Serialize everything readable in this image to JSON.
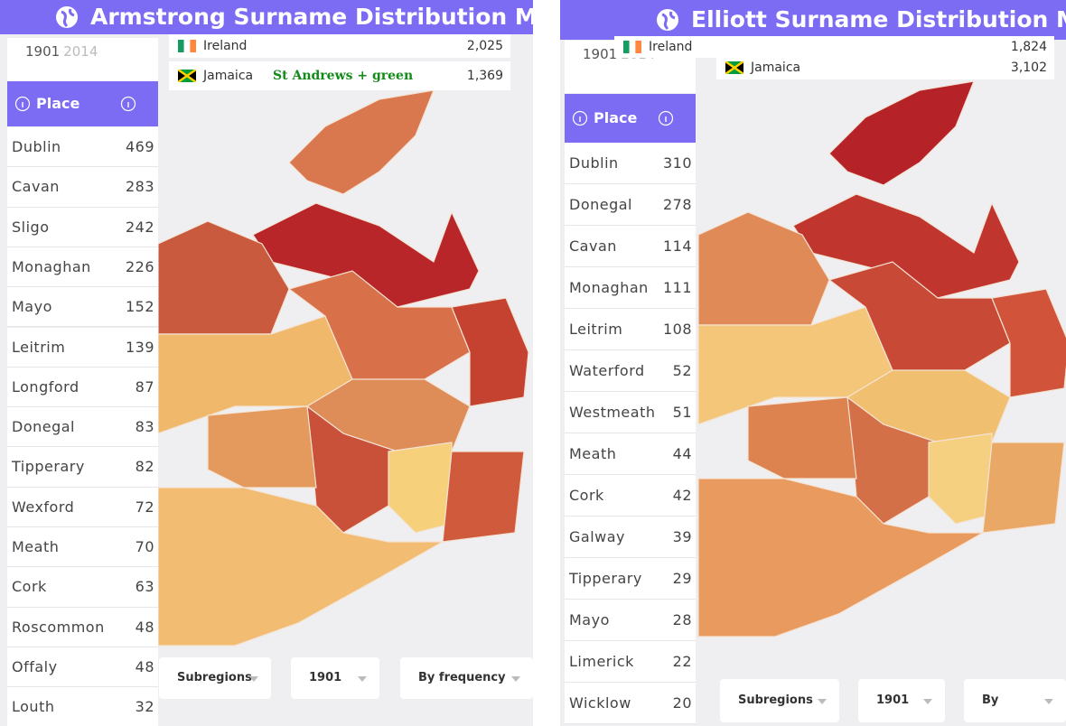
{
  "panels": [
    {
      "title": "Armstrong Surname Distribution Map",
      "years": [
        "1901",
        "2014"
      ],
      "countries": [
        {
          "name": "Ireland",
          "count": "2,025"
        },
        {
          "name": "Jamaica",
          "count": "1,369",
          "note": "St Andrews + green"
        }
      ],
      "table": {
        "header": "Place",
        "rows": [
          [
            "Dublin",
            469
          ],
          [
            "Cavan",
            283
          ],
          [
            "Sligo",
            242
          ],
          [
            "Monaghan",
            226
          ],
          [
            "Mayo",
            152
          ],
          [
            "Leitrim",
            139
          ],
          [
            "Longford",
            87
          ],
          [
            "Donegal",
            83
          ],
          [
            "Tipperary",
            82
          ],
          [
            "Wexford",
            72
          ],
          [
            "Meath",
            70
          ],
          [
            "Cork",
            63
          ],
          [
            "Roscommon",
            48
          ],
          [
            "Offaly",
            48
          ],
          [
            "Louth",
            32
          ]
        ]
      },
      "controls": [
        "Subregions",
        "1901",
        "By frequency"
      ]
    },
    {
      "title": "Elliott Surname Distribution Map",
      "years": [
        "1901",
        "2014"
      ],
      "countries": [
        {
          "name": "Ireland",
          "count": "1,824"
        },
        {
          "name": "Jamaica",
          "count": "3,102"
        }
      ],
      "table": {
        "header": "Place",
        "rows": [
          [
            "Dublin",
            310
          ],
          [
            "Donegal",
            278
          ],
          [
            "Cavan",
            114
          ],
          [
            "Monaghan",
            111
          ],
          [
            "Leitrim",
            108
          ],
          [
            "Waterford",
            52
          ],
          [
            "Westmeath",
            51
          ],
          [
            "Meath",
            44
          ],
          [
            "Cork",
            42
          ],
          [
            "Galway",
            39
          ],
          [
            "Tipperary",
            29
          ],
          [
            "Mayo",
            28
          ],
          [
            "Limerick",
            22
          ],
          [
            "Wicklow",
            20
          ]
        ]
      },
      "controls": [
        "Subregions",
        "1901",
        "By frequency"
      ]
    }
  ]
}
